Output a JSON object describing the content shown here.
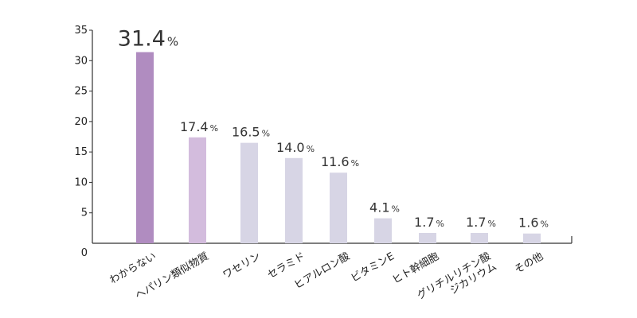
{
  "chart_data": {
    "type": "bar",
    "title": "",
    "xlabel": "",
    "ylabel": "",
    "ylim": [
      0,
      35
    ],
    "yticks": [
      0,
      5,
      10,
      15,
      20,
      25,
      30,
      35
    ],
    "grid": false,
    "legend": "none",
    "unit_suffix": "%",
    "categories": [
      [
        "わからない"
      ],
      [
        "ヘパリン類似物質"
      ],
      [
        "ワセリン"
      ],
      [
        "セラミド"
      ],
      [
        "ヒアルロン酸"
      ],
      [
        "ビタミンE"
      ],
      [
        "ヒト幹細胞"
      ],
      [
        "グリチルリチン酸",
        "ジカリウム"
      ],
      [
        "その他"
      ]
    ],
    "values": [
      31.4,
      17.4,
      16.5,
      14.0,
      11.6,
      4.1,
      1.7,
      1.7,
      1.6
    ],
    "value_labels": [
      "31.4",
      "17.4",
      "16.5",
      "14.0",
      "11.6",
      "4.1",
      "1.7",
      "1.7",
      "1.6"
    ],
    "colors": [
      "#b08cc0",
      "#d3bcdd",
      "#d7d5e5",
      "#d7d5e5",
      "#d7d5e5",
      "#d7d5e5",
      "#d7d5e5",
      "#d7d5e5",
      "#d7d5e5"
    ]
  }
}
